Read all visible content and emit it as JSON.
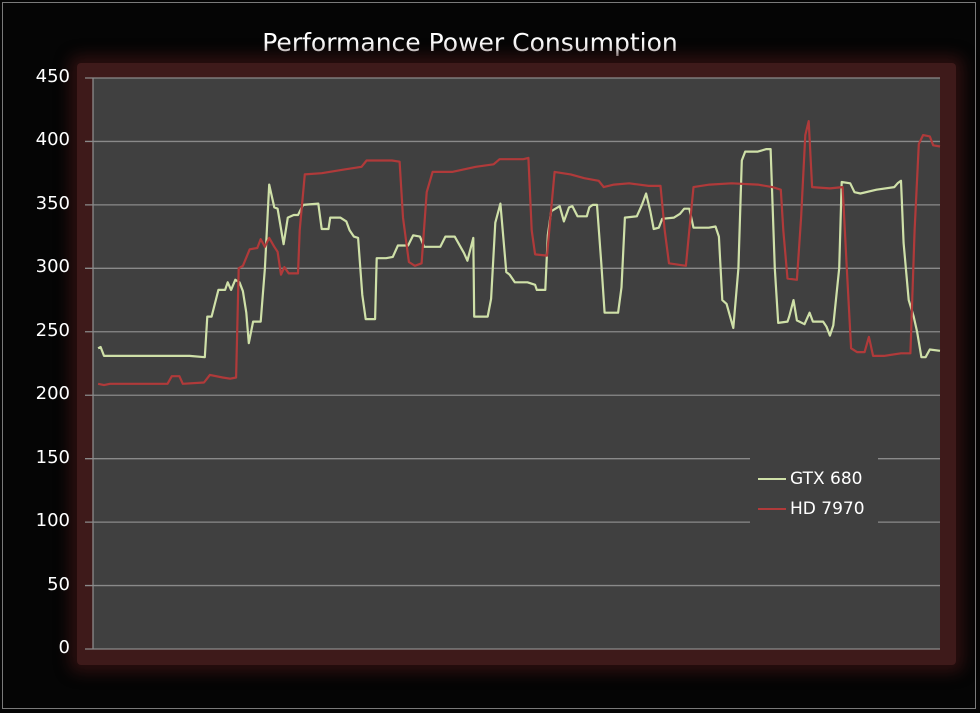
{
  "chart_data": {
    "type": "line",
    "title": "Performance Power Consumption",
    "xlabel": "",
    "ylabel": "",
    "ylim": [
      0,
      450
    ],
    "yticks": [
      0,
      50,
      100,
      150,
      200,
      250,
      300,
      350,
      400,
      450
    ],
    "grid": true,
    "legend_position": "lower right (inside plot)",
    "x_note": "x is a relative time position 0-100 across the plot; no x tick labels are shown",
    "series": [
      {
        "name": "GTX 680",
        "color": "#cfe0a8",
        "points": [
          [
            0.6,
            237
          ],
          [
            0.9,
            238
          ],
          [
            1.3,
            231
          ],
          [
            4.3,
            231
          ],
          [
            6.7,
            231
          ],
          [
            11.4,
            231
          ],
          [
            13.2,
            230
          ],
          [
            13.5,
            262
          ],
          [
            14.0,
            262
          ],
          [
            14.8,
            283
          ],
          [
            15.6,
            283
          ],
          [
            15.9,
            289
          ],
          [
            16.3,
            283
          ],
          [
            16.8,
            291
          ],
          [
            17.3,
            289
          ],
          [
            17.7,
            282
          ],
          [
            18.1,
            265
          ],
          [
            18.4,
            241
          ],
          [
            18.9,
            258
          ],
          [
            19.8,
            258
          ],
          [
            20.3,
            300
          ],
          [
            20.8,
            366
          ],
          [
            21.4,
            348
          ],
          [
            21.8,
            347
          ],
          [
            22.5,
            319
          ],
          [
            23.0,
            340
          ],
          [
            23.7,
            342
          ],
          [
            24.2,
            342
          ],
          [
            24.8,
            350
          ],
          [
            26.6,
            351
          ],
          [
            27.0,
            331
          ],
          [
            27.8,
            331
          ],
          [
            28.0,
            340
          ],
          [
            29.2,
            340
          ],
          [
            29.9,
            337
          ],
          [
            30.3,
            330
          ],
          [
            30.8,
            325
          ],
          [
            31.3,
            324
          ],
          [
            31.8,
            279
          ],
          [
            32.2,
            260
          ],
          [
            33.3,
            260
          ],
          [
            33.5,
            308
          ],
          [
            34.6,
            308
          ],
          [
            35.4,
            309
          ],
          [
            36.0,
            318
          ],
          [
            37.2,
            318
          ],
          [
            37.8,
            326
          ],
          [
            38.6,
            325
          ],
          [
            39.1,
            317
          ],
          [
            41.0,
            317
          ],
          [
            41.6,
            325
          ],
          [
            42.7,
            325
          ],
          [
            43.8,
            312
          ],
          [
            44.2,
            306
          ],
          [
            44.9,
            324
          ],
          [
            45.0,
            262
          ],
          [
            46.6,
            262
          ],
          [
            47.0,
            276
          ],
          [
            47.5,
            336
          ],
          [
            48.1,
            351
          ],
          [
            48.8,
            297
          ],
          [
            49.2,
            295
          ],
          [
            49.8,
            289
          ],
          [
            51.3,
            289
          ],
          [
            52.2,
            287
          ],
          [
            52.4,
            283
          ],
          [
            53.4,
            283
          ],
          [
            53.7,
            326
          ],
          [
            54.1,
            345
          ],
          [
            55.1,
            349
          ],
          [
            55.6,
            337
          ],
          [
            56.2,
            348
          ],
          [
            56.6,
            349
          ],
          [
            57.2,
            341
          ],
          [
            58.3,
            341
          ],
          [
            58.6,
            348
          ],
          [
            59.0,
            350
          ],
          [
            59.5,
            350
          ],
          [
            60.0,
            305
          ],
          [
            60.4,
            265
          ],
          [
            62.0,
            265
          ],
          [
            62.4,
            285
          ],
          [
            62.8,
            340
          ],
          [
            64.2,
            341
          ],
          [
            64.8,
            350
          ],
          [
            65.3,
            359
          ],
          [
            65.8,
            345
          ],
          [
            66.2,
            331
          ],
          [
            66.8,
            332
          ],
          [
            67.2,
            339
          ],
          [
            68.6,
            340
          ],
          [
            69.3,
            343
          ],
          [
            69.8,
            347
          ],
          [
            70.4,
            347
          ],
          [
            70.9,
            332
          ],
          [
            72.7,
            332
          ],
          [
            73.5,
            333
          ],
          [
            73.9,
            325
          ],
          [
            74.3,
            275
          ],
          [
            74.8,
            272
          ],
          [
            75.6,
            253
          ],
          [
            76.2,
            300
          ],
          [
            76.6,
            385
          ],
          [
            77.0,
            392
          ],
          [
            78.5,
            392
          ],
          [
            79.5,
            394
          ],
          [
            80.0,
            394
          ],
          [
            80.5,
            300
          ],
          [
            80.9,
            257
          ],
          [
            82.0,
            258
          ],
          [
            82.2,
            262
          ],
          [
            82.7,
            275
          ],
          [
            83.1,
            259
          ],
          [
            84.0,
            256
          ],
          [
            84.6,
            265
          ],
          [
            85.0,
            258
          ],
          [
            86.2,
            258
          ],
          [
            86.6,
            254
          ],
          [
            87.0,
            247
          ],
          [
            87.4,
            255
          ],
          [
            88.1,
            300
          ],
          [
            88.4,
            368
          ],
          [
            89.4,
            367
          ],
          [
            89.9,
            360
          ],
          [
            90.6,
            359
          ],
          [
            92.5,
            362
          ],
          [
            94.6,
            364
          ],
          [
            95.0,
            367
          ],
          [
            95.4,
            369
          ],
          [
            95.7,
            320
          ],
          [
            96.3,
            275
          ],
          [
            96.9,
            262
          ],
          [
            97.3,
            250
          ],
          [
            97.8,
            230
          ],
          [
            98.3,
            230
          ],
          [
            98.8,
            236
          ],
          [
            100,
            235
          ]
        ]
      },
      {
        "name": "HD 7970",
        "color": "#b03a3a",
        "points": [
          [
            0.6,
            209
          ],
          [
            1.3,
            208
          ],
          [
            2.0,
            209
          ],
          [
            4.3,
            209
          ],
          [
            8.8,
            209
          ],
          [
            9.3,
            215
          ],
          [
            10.2,
            215
          ],
          [
            10.6,
            209
          ],
          [
            13.1,
            210
          ],
          [
            13.8,
            216
          ],
          [
            15.3,
            214
          ],
          [
            16.2,
            213
          ],
          [
            16.9,
            214
          ],
          [
            17.2,
            300
          ],
          [
            17.7,
            302
          ],
          [
            18.5,
            315
          ],
          [
            19.4,
            316
          ],
          [
            19.8,
            323
          ],
          [
            20.3,
            317
          ],
          [
            20.8,
            324
          ],
          [
            21.4,
            317
          ],
          [
            21.8,
            313
          ],
          [
            22.2,
            295
          ],
          [
            22.6,
            301
          ],
          [
            23.1,
            296
          ],
          [
            24.2,
            296
          ],
          [
            24.4,
            330
          ],
          [
            25.0,
            374
          ],
          [
            27.0,
            375
          ],
          [
            29.7,
            378
          ],
          [
            31.7,
            380
          ],
          [
            32.3,
            385
          ],
          [
            35.3,
            385
          ],
          [
            36.2,
            384
          ],
          [
            36.6,
            340
          ],
          [
            37.3,
            305
          ],
          [
            38.0,
            302
          ],
          [
            38.8,
            304
          ],
          [
            39.4,
            360
          ],
          [
            40.1,
            376
          ],
          [
            42.4,
            376
          ],
          [
            45.2,
            380
          ],
          [
            47.3,
            382
          ],
          [
            48.0,
            386
          ],
          [
            50.8,
            386
          ],
          [
            51.4,
            387
          ],
          [
            51.8,
            330
          ],
          [
            52.2,
            311
          ],
          [
            53.6,
            310
          ],
          [
            54.0,
            340
          ],
          [
            54.5,
            376
          ],
          [
            56.4,
            374
          ],
          [
            58.0,
            371
          ],
          [
            59.7,
            369
          ],
          [
            60.3,
            364
          ],
          [
            61.5,
            366
          ],
          [
            63.3,
            367
          ],
          [
            65.6,
            365
          ],
          [
            67.0,
            365
          ],
          [
            67.5,
            330
          ],
          [
            68.0,
            304
          ],
          [
            70.0,
            302
          ],
          [
            70.4,
            330
          ],
          [
            70.9,
            364
          ],
          [
            72.8,
            366
          ],
          [
            75.4,
            367
          ],
          [
            78.5,
            366
          ],
          [
            80.2,
            364
          ],
          [
            81.2,
            362
          ],
          [
            81.5,
            330
          ],
          [
            82.0,
            292
          ],
          [
            83.1,
            291
          ],
          [
            83.6,
            340
          ],
          [
            84.1,
            405
          ],
          [
            84.5,
            416
          ],
          [
            84.9,
            364
          ],
          [
            87.0,
            363
          ],
          [
            88.5,
            364
          ],
          [
            89.0,
            300
          ],
          [
            89.5,
            237
          ],
          [
            90.2,
            234
          ],
          [
            91.1,
            234
          ],
          [
            91.6,
            246
          ],
          [
            92.1,
            231
          ],
          [
            93.4,
            231
          ],
          [
            95.4,
            233
          ],
          [
            96.5,
            233
          ],
          [
            97.0,
            330
          ],
          [
            97.5,
            398
          ],
          [
            98.0,
            405
          ],
          [
            98.8,
            404
          ],
          [
            99.2,
            397
          ],
          [
            100,
            396
          ]
        ]
      }
    ]
  },
  "title": "Performance Power Consumption",
  "yticks": [
    "450",
    "400",
    "350",
    "300",
    "250",
    "200",
    "150",
    "100",
    "50",
    "0"
  ],
  "legend": {
    "items": [
      {
        "label": "GTX 680",
        "color": "#cfe0a8"
      },
      {
        "label": "HD 7970",
        "color": "#b03a3a"
      }
    ]
  }
}
